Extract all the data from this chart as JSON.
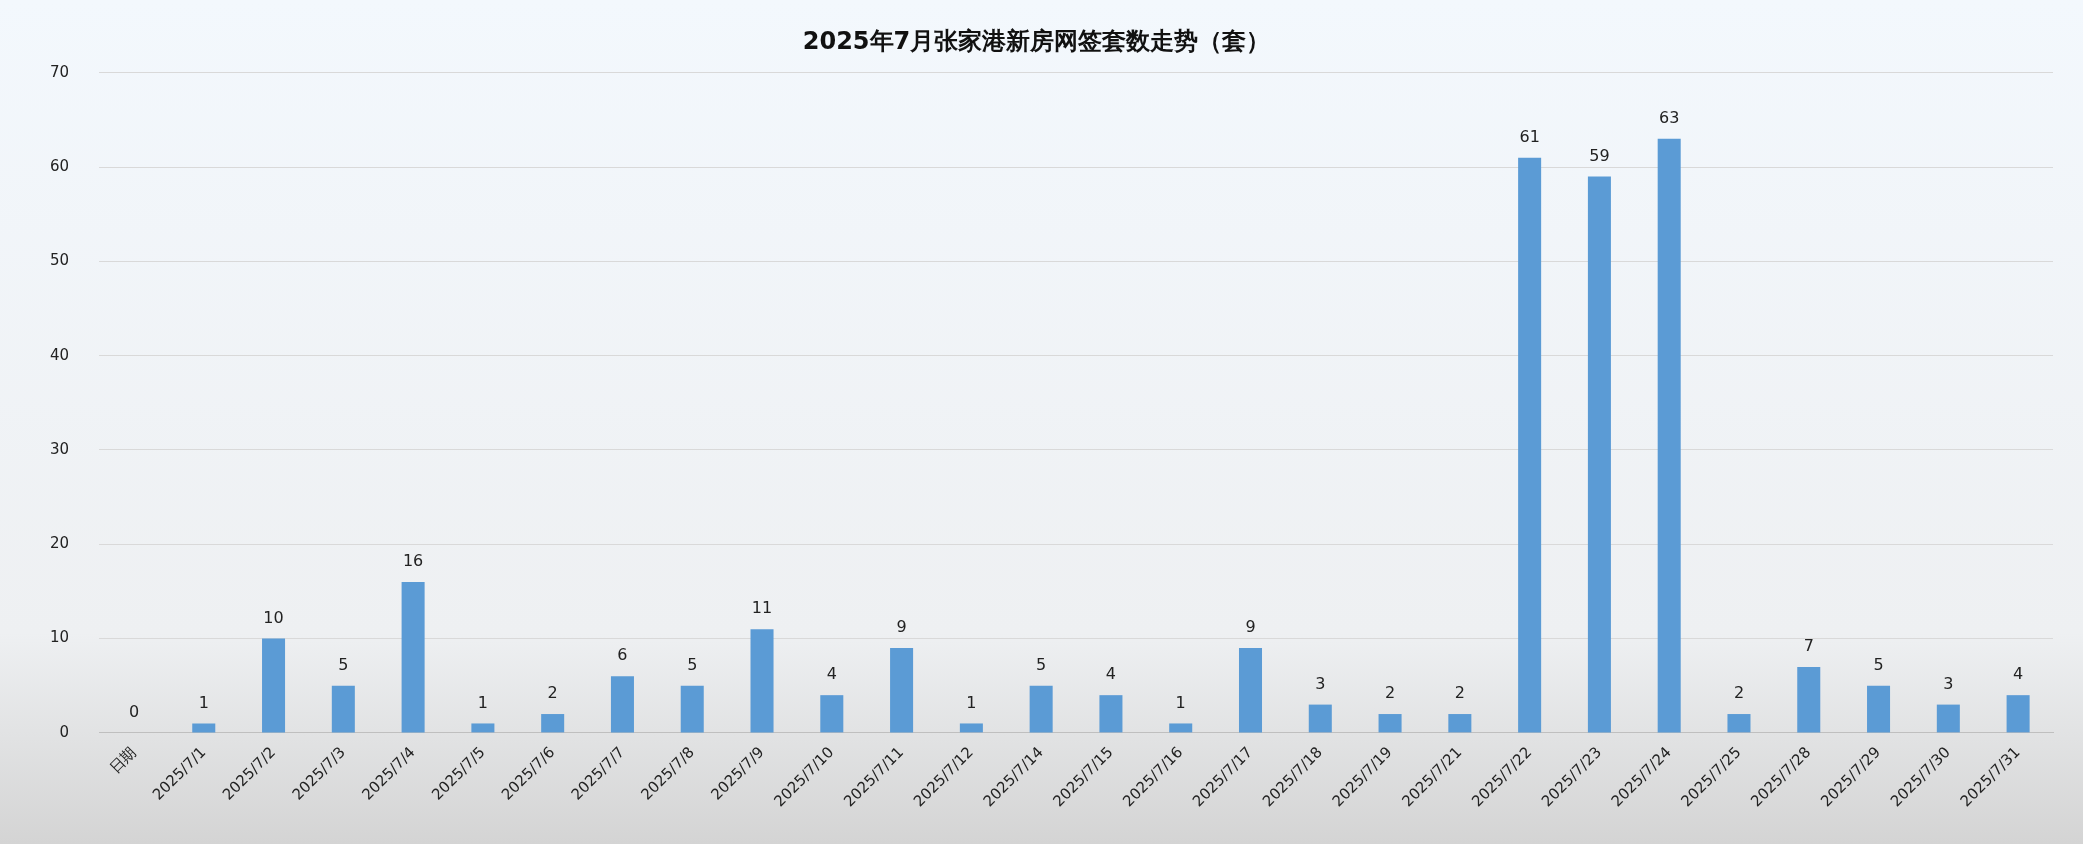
{
  "chart_data": {
    "type": "bar",
    "title": "2025年7月张家港新房网签套数走势（套）",
    "categories": [
      "日期",
      "2025/7/1",
      "2025/7/2",
      "2025/7/3",
      "2025/7/4",
      "2025/7/5",
      "2025/7/6",
      "2025/7/7",
      "2025/7/8",
      "2025/7/9",
      "2025/7/10",
      "2025/7/11",
      "2025/7/12",
      "2025/7/14",
      "2025/7/15",
      "2025/7/16",
      "2025/7/17",
      "2025/7/18",
      "2025/7/19",
      "2025/7/21",
      "2025/7/22",
      "2025/7/23",
      "2025/7/24",
      "2025/7/25",
      "2025/7/28",
      "2025/7/29",
      "2025/7/30",
      "2025/7/31"
    ],
    "values": [
      0,
      1,
      10,
      5,
      16,
      1,
      2,
      6,
      5,
      11,
      4,
      9,
      1,
      5,
      4,
      1,
      9,
      3,
      2,
      2,
      61,
      59,
      63,
      2,
      7,
      5,
      3,
      4
    ],
    "color": "#5b9bd5",
    "ylim": [
      0,
      70
    ],
    "yticks": [
      0,
      10,
      20,
      30,
      40,
      50,
      60,
      70
    ],
    "grid": "y",
    "data_labels": true
  }
}
